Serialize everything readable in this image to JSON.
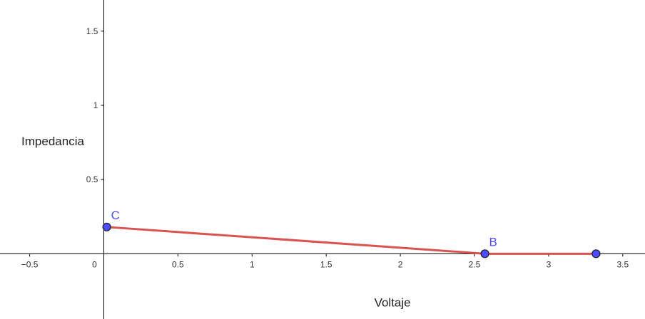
{
  "chart_data": {
    "type": "line",
    "xlabel": "Voltaje",
    "ylabel": "Impedancia",
    "xlim": [
      -0.7,
      3.65
    ],
    "ylim": [
      -0.44,
      1.71
    ],
    "x_ticks": [
      {
        "value": -0.5,
        "label": "−0.5"
      },
      {
        "value": 0,
        "label": "0"
      },
      {
        "value": 0.5,
        "label": "0.5"
      },
      {
        "value": 1,
        "label": "1"
      },
      {
        "value": 1.5,
        "label": "1.5"
      },
      {
        "value": 2,
        "label": "2"
      },
      {
        "value": 2.5,
        "label": "2.5"
      },
      {
        "value": 3,
        "label": "3"
      },
      {
        "value": 3.5,
        "label": "3.5"
      }
    ],
    "y_ticks": [
      {
        "value": 0.5,
        "label": "0.5"
      },
      {
        "value": 1,
        "label": "1"
      },
      {
        "value": 1.5,
        "label": "1.5"
      }
    ],
    "grid": false,
    "points": [
      {
        "name": "C",
        "x": 0.02,
        "y": 0.18
      },
      {
        "name": "B",
        "x": 2.57,
        "y": 0
      },
      {
        "name": "",
        "x": 3.32,
        "y": 0
      }
    ],
    "series": [
      {
        "x": [
          0.02,
          2.57,
          3.32
        ],
        "y": [
          0.18,
          0,
          0
        ]
      }
    ],
    "colors": {
      "line": "#d9534f",
      "point_fill": "#4d4dff",
      "point_stroke": "#1a1a1a",
      "point_label": "#4d4dff",
      "axis": "#000000"
    }
  }
}
